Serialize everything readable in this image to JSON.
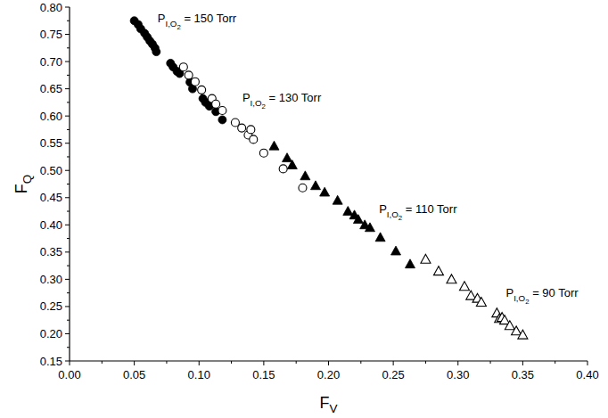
{
  "chart_data": {
    "type": "scatter",
    "x_label": {
      "text": "F",
      "sub": "V"
    },
    "y_label": {
      "text": "F",
      "sub": "Q"
    },
    "xlim": [
      0,
      0.4
    ],
    "ylim": [
      0.15,
      0.8
    ],
    "xticks": [
      {
        "value": 0,
        "label": "0.00"
      },
      {
        "value": 0.05,
        "label": "0.05"
      },
      {
        "value": 0.1,
        "label": "0.10"
      },
      {
        "value": 0.15,
        "label": "0.15"
      },
      {
        "value": 0.2,
        "label": "0.20"
      },
      {
        "value": 0.25,
        "label": "0.25"
      },
      {
        "value": 0.3,
        "label": "0.30"
      },
      {
        "value": 0.35,
        "label": "0.35"
      },
      {
        "value": 0.4,
        "label": "0.40"
      }
    ],
    "yticks": [
      {
        "value": 0.15,
        "label": "0.15"
      },
      {
        "value": 0.2,
        "label": "0.20"
      },
      {
        "value": 0.25,
        "label": "0.25"
      },
      {
        "value": 0.3,
        "label": "0.30"
      },
      {
        "value": 0.35,
        "label": "0.35"
      },
      {
        "value": 0.4,
        "label": "0.40"
      },
      {
        "value": 0.45,
        "label": "0.45"
      },
      {
        "value": 0.5,
        "label": "0.50"
      },
      {
        "value": 0.55,
        "label": "0.55"
      },
      {
        "value": 0.6,
        "label": "0.60"
      },
      {
        "value": 0.65,
        "label": "0.65"
      },
      {
        "value": 0.7,
        "label": "0.70"
      },
      {
        "value": 0.75,
        "label": "0.75"
      },
      {
        "value": 0.8,
        "label": "0.80"
      }
    ],
    "grid": false,
    "series": [
      {
        "color": "#000000",
        "marker": "circle",
        "x": [
          0.05,
          0.053,
          0.055,
          0.058,
          0.06,
          0.062,
          0.064,
          0.066,
          0.067,
          0.078,
          0.08,
          0.083,
          0.085,
          0.093,
          0.095,
          0.103,
          0.105,
          0.108,
          0.113,
          0.118
        ],
        "values": [
          0.775,
          0.768,
          0.76,
          0.752,
          0.745,
          0.738,
          0.732,
          0.725,
          0.718,
          0.697,
          0.69,
          0.682,
          0.678,
          0.662,
          0.65,
          0.632,
          0.625,
          0.618,
          0.608,
          0.593
        ]
      },
      {
        "color": "#000000",
        "marker": "circle-open",
        "x": [
          0.088,
          0.092,
          0.097,
          0.102,
          0.11,
          0.113,
          0.118,
          0.128,
          0.133,
          0.138,
          0.14,
          0.142,
          0.15,
          0.165,
          0.18
        ],
        "values": [
          0.69,
          0.675,
          0.663,
          0.648,
          0.632,
          0.622,
          0.61,
          0.588,
          0.578,
          0.565,
          0.575,
          0.557,
          0.532,
          0.503,
          0.468
        ]
      },
      {
        "color": "#000000",
        "marker": "triangle",
        "x": [
          0.158,
          0.168,
          0.172,
          0.182,
          0.19,
          0.197,
          0.207,
          0.215,
          0.22,
          0.223,
          0.228,
          0.232,
          0.24,
          0.252,
          0.263
        ],
        "values": [
          0.545,
          0.523,
          0.51,
          0.49,
          0.472,
          0.46,
          0.445,
          0.425,
          0.418,
          0.41,
          0.4,
          0.395,
          0.377,
          0.352,
          0.328
        ]
      },
      {
        "color": "#000000",
        "marker": "triangle-open",
        "x": [
          0.275,
          0.285,
          0.295,
          0.305,
          0.31,
          0.315,
          0.318,
          0.33,
          0.332,
          0.334,
          0.336,
          0.34,
          0.345,
          0.35
        ],
        "values": [
          0.337,
          0.315,
          0.3,
          0.287,
          0.27,
          0.265,
          0.258,
          0.238,
          0.228,
          0.23,
          0.225,
          0.215,
          0.205,
          0.198
        ]
      }
    ],
    "annotations": [
      {
        "text": "P",
        "sub": "I,O",
        "subsub": "2",
        "rest": " = 150 Torr",
        "x": 0.068,
        "y": 0.772
      },
      {
        "text": "P",
        "sub": "I,O",
        "subsub": "2",
        "rest": " = 130 Torr",
        "x": 0.1335,
        "y": 0.626
      },
      {
        "text": "P",
        "sub": "I,O",
        "subsub": "2",
        "rest": " = 110 Torr",
        "x": 0.239,
        "y": 0.421
      },
      {
        "text": "P",
        "sub": "I,O",
        "subsub": "2",
        "rest": " = 90 Torr",
        "x": 0.337,
        "y": 0.268
      }
    ]
  }
}
